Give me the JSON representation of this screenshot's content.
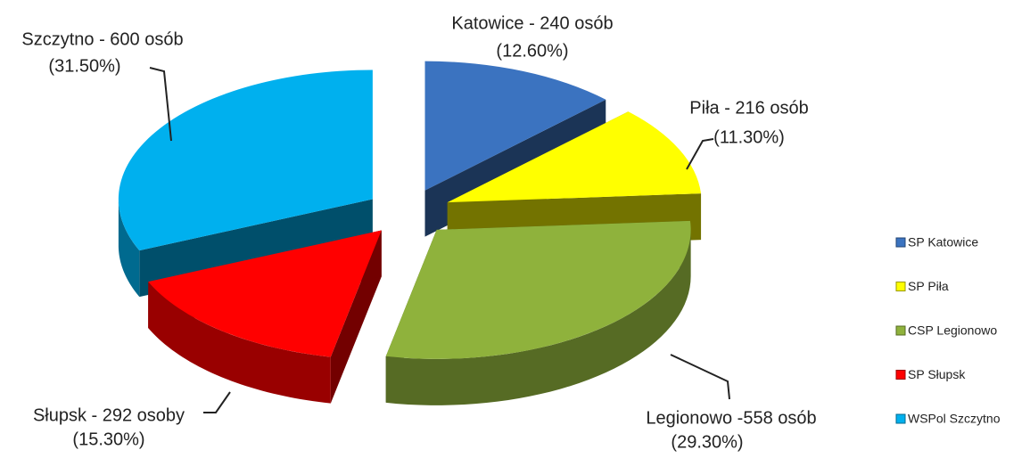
{
  "chart_data": {
    "type": "pie",
    "categories": [
      "SP Katowice",
      "SP Piła",
      "CSP Legionowo",
      "SP Słupsk",
      "WSPol Szczytno"
    ],
    "values": [
      12.6,
      11.3,
      29.3,
      15.3,
      31.5
    ],
    "value_labels": [
      "(12.60%)",
      "(11.30%)",
      "(29.30%)",
      "(15.30%)",
      "(31.50%)"
    ],
    "data_labels": [
      "Katowice - 240 osób",
      "Piła - 216 osób",
      "Legionowo -558 osób",
      "Słupsk - 292 osoby",
      "Szczytno - 600 osób"
    ],
    "colors": [
      "#3b73c0",
      "#ffff00",
      "#8fb23c",
      "#ff0000",
      "#00b0ee"
    ],
    "legend": "right"
  }
}
